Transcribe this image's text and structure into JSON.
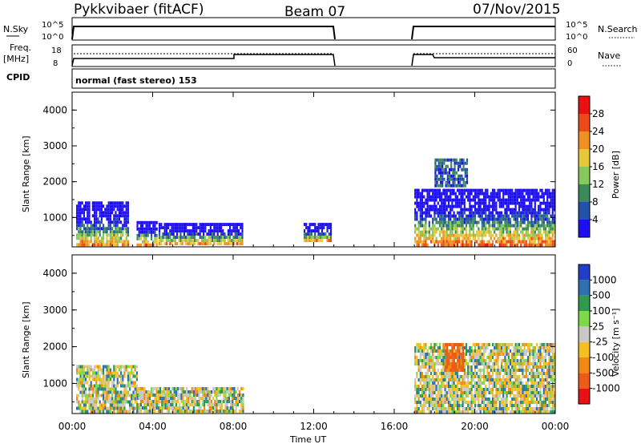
{
  "header": {
    "title": "Pykkvibaer (fitACF)",
    "beam": "Beam 07",
    "date": "07/Nov/2015"
  },
  "strips": {
    "nsky_label": "N.Sky",
    "nsky_ticks": [
      "10^5",
      "10^0"
    ],
    "nsearch_label": "N.Search",
    "nsearch_ticks": [
      "10^5",
      "10^0"
    ],
    "freq_label": "Freq.",
    "freq_unit": "[MHz]",
    "freq_ticks": [
      "18",
      "8"
    ],
    "nave_label": "Nave",
    "nave_ticks": [
      "60",
      "0"
    ],
    "cpid_label": "CPID",
    "cpid_value": "normal (fast stereo) 153"
  },
  "chart_data": [
    {
      "type": "heatmap",
      "name": "power",
      "xlabel": "",
      "ylabel": "Slant Range [km]",
      "xlim": [
        "00:00",
        "24:00"
      ],
      "ylim": [
        180,
        4500
      ],
      "yticks": [
        "1000",
        "2000",
        "3000",
        "4000"
      ],
      "xticks": [
        "00:00",
        "04:00",
        "08:00",
        "12:00",
        "16:00",
        "20:00",
        "00:00"
      ],
      "colorbar": {
        "label": "Power [dB]",
        "ticks": [
          "4",
          "8",
          "12",
          "16",
          "20",
          "24",
          "28"
        ],
        "colors": [
          "#1e10ee",
          "#2452a8",
          "#3c8a5a",
          "#86c85a",
          "#e6c83a",
          "#f09020",
          "#ee4a18",
          "#e81010"
        ]
      },
      "blocks": [
        {
          "t0": 0.2,
          "t1": 2.8,
          "r0": 200,
          "r1": 1450,
          "level": "mixed"
        },
        {
          "t0": 3.2,
          "t1": 4.2,
          "r0": 250,
          "r1": 900,
          "level": "mixed"
        },
        {
          "t0": 4.3,
          "t1": 8.5,
          "r0": 250,
          "r1": 850,
          "level": "mixed"
        },
        {
          "t0": 11.5,
          "t1": 12.9,
          "r0": 350,
          "r1": 850,
          "level": "mixed"
        },
        {
          "t0": 17.0,
          "t1": 24.0,
          "r0": 250,
          "r1": 1800,
          "level": "mixed"
        },
        {
          "t0": 18.0,
          "t1": 19.6,
          "r0": 1900,
          "r1": 2650,
          "level": "weak"
        }
      ],
      "gaps": [
        {
          "t0": 13.1,
          "t1": 17.0
        }
      ]
    },
    {
      "type": "heatmap",
      "name": "velocity",
      "xlabel": "Time UT",
      "ylabel": "Slant Range [km]",
      "xlim": [
        "00:00",
        "24:00"
      ],
      "ylim": [
        180,
        4500
      ],
      "yticks": [
        "1000",
        "2000",
        "3000",
        "4000"
      ],
      "xticks": [
        "00:00",
        "04:00",
        "08:00",
        "12:00",
        "16:00",
        "20:00",
        "00:00"
      ],
      "colorbar": {
        "label": "Velocity [m s⁻¹]",
        "ticks": [
          "1000",
          "500",
          "100",
          "25",
          "-25",
          "-100",
          "-500",
          "-1000"
        ],
        "colors": [
          "#1f3fc6",
          "#2e6fb0",
          "#2e9a4a",
          "#7ed84a",
          "#c8c8c8",
          "#f4c020",
          "#f08a10",
          "#ee5a18",
          "#e81010"
        ]
      },
      "blocks": [
        {
          "t0": 0.2,
          "t1": 3.2,
          "r0": 200,
          "r1": 1500,
          "level": "mixed"
        },
        {
          "t0": 3.2,
          "t1": 8.5,
          "r0": 250,
          "r1": 900,
          "level": "mixed"
        },
        {
          "t0": 17.0,
          "t1": 24.0,
          "r0": 250,
          "r1": 2100,
          "level": "mixed"
        },
        {
          "t0": 18.5,
          "t1": 19.4,
          "r0": 1400,
          "r1": 2100,
          "level": "red"
        }
      ],
      "gaps": [
        {
          "t0": 13.1,
          "t1": 17.0
        }
      ]
    }
  ]
}
